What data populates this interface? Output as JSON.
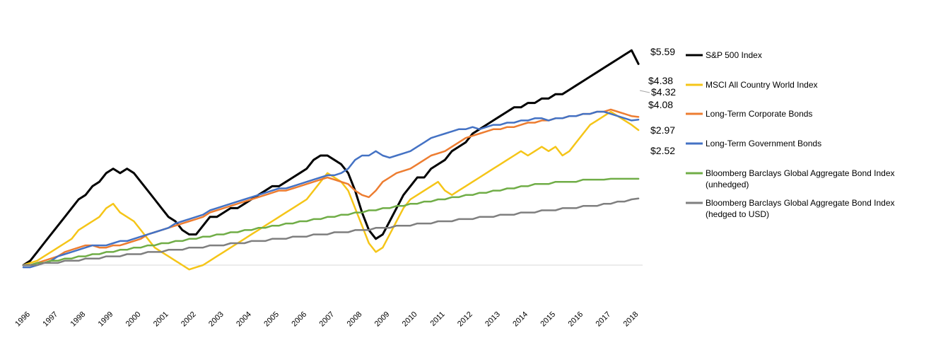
{
  "chart_data": {
    "type": "line",
    "title": "",
    "xlabel": "",
    "ylabel": "",
    "grid": false,
    "legend_position": "right",
    "x_ticks": [
      "1996",
      "1997",
      "1998",
      "1999",
      "2000",
      "2001",
      "2002",
      "2003",
      "2004",
      "2005",
      "2006",
      "2007",
      "2008",
      "2009",
      "2010",
      "2011",
      "2012",
      "2013",
      "2014",
      "2015",
      "2016",
      "2017",
      "2018"
    ],
    "x_range": [
      1996.0,
      2018.4
    ],
    "y_range": [
      0.5,
      6.1
    ],
    "series": [
      {
        "name": "S&P 500 Index",
        "color": "#000000",
        "end_label": "$5.59",
        "x": [
          1996.0,
          1996.25,
          1996.5,
          1996.75,
          1997.0,
          1997.25,
          1997.5,
          1997.75,
          1998.0,
          1998.25,
          1998.5,
          1998.75,
          1999.0,
          1999.25,
          1999.5,
          1999.75,
          2000.0,
          2000.25,
          2000.5,
          2000.75,
          2001.0,
          2001.25,
          2001.5,
          2001.75,
          2002.0,
          2002.25,
          2002.5,
          2002.75,
          2003.0,
          2003.25,
          2003.5,
          2003.75,
          2004.0,
          2004.25,
          2004.5,
          2004.75,
          2005.0,
          2005.25,
          2005.5,
          2005.75,
          2006.0,
          2006.25,
          2006.5,
          2006.75,
          2007.0,
          2007.25,
          2007.5,
          2007.75,
          2008.0,
          2008.25,
          2008.5,
          2008.75,
          2009.0,
          2009.25,
          2009.5,
          2009.75,
          2010.0,
          2010.25,
          2010.5,
          2010.75,
          2011.0,
          2011.25,
          2011.5,
          2011.75,
          2012.0,
          2012.25,
          2012.5,
          2012.75,
          2013.0,
          2013.25,
          2013.5,
          2013.75,
          2014.0,
          2014.25,
          2014.5,
          2014.75,
          2015.0,
          2015.25,
          2015.5,
          2015.75,
          2016.0,
          2016.25,
          2016.5,
          2016.75,
          2017.0,
          2017.25,
          2017.5,
          2017.75,
          2018.0,
          2018.25
        ],
        "values": [
          1.0,
          1.1,
          1.3,
          1.5,
          1.7,
          1.9,
          2.1,
          2.3,
          2.5,
          2.6,
          2.8,
          2.9,
          3.1,
          3.2,
          3.1,
          3.2,
          3.1,
          2.9,
          2.7,
          2.5,
          2.3,
          2.1,
          2.0,
          1.8,
          1.7,
          1.7,
          1.9,
          2.1,
          2.1,
          2.2,
          2.3,
          2.3,
          2.4,
          2.5,
          2.6,
          2.7,
          2.8,
          2.8,
          2.9,
          3.0,
          3.1,
          3.2,
          3.4,
          3.5,
          3.5,
          3.4,
          3.3,
          3.1,
          2.7,
          2.2,
          1.8,
          1.6,
          1.7,
          2.0,
          2.3,
          2.6,
          2.8,
          3.0,
          3.0,
          3.2,
          3.3,
          3.4,
          3.6,
          3.7,
          3.8,
          4.0,
          4.1,
          4.2,
          4.3,
          4.4,
          4.5,
          4.6,
          4.6,
          4.7,
          4.7,
          4.8,
          4.8,
          4.9,
          4.9,
          5.0,
          5.1,
          5.2,
          5.3,
          5.4,
          5.5,
          5.6,
          5.7,
          5.8,
          5.9,
          5.59
        ]
      },
      {
        "name": "MSCI All Country World Index",
        "color": "#F5C518",
        "end_label": "$4.08",
        "x": [
          1996.0,
          1996.25,
          1996.5,
          1996.75,
          1997.0,
          1997.25,
          1997.5,
          1997.75,
          1998.0,
          1998.25,
          1998.5,
          1998.75,
          1999.0,
          1999.25,
          1999.5,
          1999.75,
          2000.0,
          2000.25,
          2000.5,
          2000.75,
          2001.0,
          2001.25,
          2001.5,
          2001.75,
          2002.0,
          2002.25,
          2002.5,
          2002.75,
          2003.0,
          2003.25,
          2003.5,
          2003.75,
          2004.0,
          2004.25,
          2004.5,
          2004.75,
          2005.0,
          2005.25,
          2005.5,
          2005.75,
          2006.0,
          2006.25,
          2006.5,
          2006.75,
          2007.0,
          2007.25,
          2007.5,
          2007.75,
          2008.0,
          2008.25,
          2008.5,
          2008.75,
          2009.0,
          2009.25,
          2009.5,
          2009.75,
          2010.0,
          2010.25,
          2010.5,
          2010.75,
          2011.0,
          2011.25,
          2011.5,
          2011.75,
          2012.0,
          2012.25,
          2012.5,
          2012.75,
          2013.0,
          2013.25,
          2013.5,
          2013.75,
          2014.0,
          2014.25,
          2014.5,
          2014.75,
          2015.0,
          2015.25,
          2015.5,
          2015.75,
          2016.0,
          2016.25,
          2016.5,
          2016.75,
          2017.0,
          2017.25,
          2017.5,
          2017.75,
          2018.0,
          2018.25
        ],
        "values": [
          1.0,
          1.05,
          1.1,
          1.2,
          1.3,
          1.4,
          1.5,
          1.6,
          1.8,
          1.9,
          2.0,
          2.1,
          2.3,
          2.4,
          2.2,
          2.1,
          2.0,
          1.8,
          1.6,
          1.4,
          1.3,
          1.2,
          1.1,
          1.0,
          0.9,
          0.95,
          1.0,
          1.1,
          1.2,
          1.3,
          1.4,
          1.5,
          1.6,
          1.7,
          1.8,
          1.9,
          2.0,
          2.1,
          2.2,
          2.3,
          2.4,
          2.5,
          2.7,
          2.9,
          3.1,
          3.0,
          2.9,
          2.7,
          2.3,
          1.9,
          1.5,
          1.3,
          1.4,
          1.7,
          2.0,
          2.3,
          2.5,
          2.6,
          2.7,
          2.8,
          2.9,
          2.7,
          2.6,
          2.7,
          2.8,
          2.9,
          3.0,
          3.1,
          3.2,
          3.3,
          3.4,
          3.5,
          3.6,
          3.5,
          3.6,
          3.7,
          3.6,
          3.7,
          3.5,
          3.6,
          3.8,
          4.0,
          4.2,
          4.3,
          4.4,
          4.5,
          4.4,
          4.3,
          4.2,
          4.08
        ]
      },
      {
        "name": "Long-Term Corporate Bonds",
        "color": "#ED7D31",
        "end_label": "$4.38",
        "x": [
          1996.0,
          1996.25,
          1996.5,
          1996.75,
          1997.0,
          1997.25,
          1997.5,
          1997.75,
          1998.0,
          1998.25,
          1998.5,
          1998.75,
          1999.0,
          1999.25,
          1999.5,
          1999.75,
          2000.0,
          2000.25,
          2000.5,
          2000.75,
          2001.0,
          2001.25,
          2001.5,
          2001.75,
          2002.0,
          2002.25,
          2002.5,
          2002.75,
          2003.0,
          2003.25,
          2003.5,
          2003.75,
          2004.0,
          2004.25,
          2004.5,
          2004.75,
          2005.0,
          2005.25,
          2005.5,
          2005.75,
          2006.0,
          2006.25,
          2006.5,
          2006.75,
          2007.0,
          2007.25,
          2007.5,
          2007.75,
          2008.0,
          2008.25,
          2008.5,
          2008.75,
          2009.0,
          2009.25,
          2009.5,
          2009.75,
          2010.0,
          2010.25,
          2010.5,
          2010.75,
          2011.0,
          2011.25,
          2011.5,
          2011.75,
          2012.0,
          2012.25,
          2012.5,
          2012.75,
          2013.0,
          2013.25,
          2013.5,
          2013.75,
          2014.0,
          2014.25,
          2014.5,
          2014.75,
          2015.0,
          2015.25,
          2015.5,
          2015.75,
          2016.0,
          2016.25,
          2016.5,
          2016.75,
          2017.0,
          2017.25,
          2017.5,
          2017.75,
          2018.0,
          2018.25
        ],
        "values": [
          1.0,
          1.0,
          1.05,
          1.1,
          1.15,
          1.2,
          1.3,
          1.35,
          1.4,
          1.45,
          1.45,
          1.4,
          1.4,
          1.45,
          1.45,
          1.5,
          1.55,
          1.6,
          1.7,
          1.75,
          1.8,
          1.85,
          1.9,
          1.95,
          2.0,
          2.05,
          2.1,
          2.2,
          2.25,
          2.3,
          2.35,
          2.4,
          2.45,
          2.5,
          2.55,
          2.6,
          2.65,
          2.7,
          2.7,
          2.75,
          2.8,
          2.85,
          2.9,
          2.95,
          3.0,
          2.95,
          2.9,
          2.85,
          2.7,
          2.6,
          2.55,
          2.7,
          2.9,
          3.0,
          3.1,
          3.15,
          3.2,
          3.3,
          3.4,
          3.5,
          3.55,
          3.6,
          3.7,
          3.8,
          3.9,
          3.95,
          4.0,
          4.05,
          4.1,
          4.1,
          4.15,
          4.15,
          4.2,
          4.25,
          4.25,
          4.3,
          4.3,
          4.35,
          4.35,
          4.4,
          4.4,
          4.45,
          4.45,
          4.5,
          4.5,
          4.55,
          4.5,
          4.45,
          4.4,
          4.38
        ]
      },
      {
        "name": "Long-Term Government Bonds",
        "color": "#4472C4",
        "end_label": "$4.32",
        "x": [
          1996.0,
          1996.25,
          1996.5,
          1996.75,
          1997.0,
          1997.25,
          1997.5,
          1997.75,
          1998.0,
          1998.25,
          1998.5,
          1998.75,
          1999.0,
          1999.25,
          1999.5,
          1999.75,
          2000.0,
          2000.25,
          2000.5,
          2000.75,
          2001.0,
          2001.25,
          2001.5,
          2001.75,
          2002.0,
          2002.25,
          2002.5,
          2002.75,
          2003.0,
          2003.25,
          2003.5,
          2003.75,
          2004.0,
          2004.25,
          2004.5,
          2004.75,
          2005.0,
          2005.25,
          2005.5,
          2005.75,
          2006.0,
          2006.25,
          2006.5,
          2006.75,
          2007.0,
          2007.25,
          2007.5,
          2007.75,
          2008.0,
          2008.25,
          2008.5,
          2008.75,
          2009.0,
          2009.25,
          2009.5,
          2009.75,
          2010.0,
          2010.25,
          2010.5,
          2010.75,
          2011.0,
          2011.25,
          2011.5,
          2011.75,
          2012.0,
          2012.25,
          2012.5,
          2012.75,
          2013.0,
          2013.25,
          2013.5,
          2013.75,
          2014.0,
          2014.25,
          2014.5,
          2014.75,
          2015.0,
          2015.25,
          2015.5,
          2015.75,
          2016.0,
          2016.25,
          2016.5,
          2016.75,
          2017.0,
          2017.25,
          2017.5,
          2017.75,
          2018.0,
          2018.25
        ],
        "values": [
          0.95,
          0.95,
          1.0,
          1.05,
          1.1,
          1.2,
          1.25,
          1.3,
          1.35,
          1.4,
          1.45,
          1.45,
          1.45,
          1.5,
          1.55,
          1.55,
          1.6,
          1.65,
          1.7,
          1.75,
          1.8,
          1.85,
          1.95,
          2.0,
          2.05,
          2.1,
          2.15,
          2.25,
          2.3,
          2.35,
          2.4,
          2.45,
          2.5,
          2.55,
          2.6,
          2.65,
          2.7,
          2.75,
          2.75,
          2.8,
          2.85,
          2.9,
          2.95,
          3.0,
          3.05,
          3.05,
          3.1,
          3.2,
          3.4,
          3.5,
          3.5,
          3.6,
          3.5,
          3.45,
          3.5,
          3.55,
          3.6,
          3.7,
          3.8,
          3.9,
          3.95,
          4.0,
          4.05,
          4.1,
          4.1,
          4.15,
          4.1,
          4.15,
          4.2,
          4.2,
          4.25,
          4.25,
          4.3,
          4.3,
          4.35,
          4.35,
          4.3,
          4.35,
          4.35,
          4.4,
          4.4,
          4.45,
          4.45,
          4.5,
          4.5,
          4.45,
          4.4,
          4.35,
          4.3,
          4.32
        ]
      },
      {
        "name": "Bloomberg Barclays Global Aggregate Bond Index (unhedged)",
        "color": "#70AD47",
        "end_label": "$2.97",
        "x": [
          1996.0,
          1996.25,
          1996.5,
          1996.75,
          1997.0,
          1997.25,
          1997.5,
          1997.75,
          1998.0,
          1998.25,
          1998.5,
          1998.75,
          1999.0,
          1999.25,
          1999.5,
          1999.75,
          2000.0,
          2000.25,
          2000.5,
          2000.75,
          2001.0,
          2001.25,
          2001.5,
          2001.75,
          2002.0,
          2002.25,
          2002.5,
          2002.75,
          2003.0,
          2003.25,
          2003.5,
          2003.75,
          2004.0,
          2004.25,
          2004.5,
          2004.75,
          2005.0,
          2005.25,
          2005.5,
          2005.75,
          2006.0,
          2006.25,
          2006.5,
          2006.75,
          2007.0,
          2007.25,
          2007.5,
          2007.75,
          2008.0,
          2008.25,
          2008.5,
          2008.75,
          2009.0,
          2009.25,
          2009.5,
          2009.75,
          2010.0,
          2010.25,
          2010.5,
          2010.75,
          2011.0,
          2011.25,
          2011.5,
          2011.75,
          2012.0,
          2012.25,
          2012.5,
          2012.75,
          2013.0,
          2013.25,
          2013.5,
          2013.75,
          2014.0,
          2014.25,
          2014.5,
          2014.75,
          2015.0,
          2015.25,
          2015.5,
          2015.75,
          2016.0,
          2016.25,
          2016.5,
          2016.75,
          2017.0,
          2017.25,
          2017.5,
          2017.75,
          2018.0,
          2018.25
        ],
        "values": [
          1.0,
          1.0,
          1.05,
          1.05,
          1.1,
          1.1,
          1.15,
          1.15,
          1.2,
          1.2,
          1.25,
          1.25,
          1.3,
          1.3,
          1.35,
          1.35,
          1.4,
          1.4,
          1.45,
          1.45,
          1.5,
          1.5,
          1.55,
          1.55,
          1.6,
          1.6,
          1.65,
          1.65,
          1.7,
          1.7,
          1.75,
          1.75,
          1.8,
          1.8,
          1.85,
          1.85,
          1.9,
          1.9,
          1.95,
          1.95,
          2.0,
          2.0,
          2.05,
          2.05,
          2.1,
          2.1,
          2.15,
          2.15,
          2.2,
          2.2,
          2.25,
          2.25,
          2.3,
          2.3,
          2.35,
          2.35,
          2.4,
          2.4,
          2.45,
          2.45,
          2.5,
          2.5,
          2.55,
          2.55,
          2.6,
          2.6,
          2.65,
          2.65,
          2.7,
          2.7,
          2.75,
          2.75,
          2.8,
          2.8,
          2.85,
          2.85,
          2.85,
          2.9,
          2.9,
          2.9,
          2.9,
          2.95,
          2.95,
          2.95,
          2.95,
          2.97,
          2.97,
          2.97,
          2.97,
          2.97
        ]
      },
      {
        "name": "Bloomberg Barclays Global Aggregate Bond Index (hedged to USD)",
        "color": "#7F7F7F",
        "end_label": "$2.52",
        "x": [
          1996.0,
          1996.25,
          1996.5,
          1996.75,
          1997.0,
          1997.25,
          1997.5,
          1997.75,
          1998.0,
          1998.25,
          1998.5,
          1998.75,
          1999.0,
          1999.25,
          1999.5,
          1999.75,
          2000.0,
          2000.25,
          2000.5,
          2000.75,
          2001.0,
          2001.25,
          2001.5,
          2001.75,
          2002.0,
          2002.25,
          2002.5,
          2002.75,
          2003.0,
          2003.25,
          2003.5,
          2003.75,
          2004.0,
          2004.25,
          2004.5,
          2004.75,
          2005.0,
          2005.25,
          2005.5,
          2005.75,
          2006.0,
          2006.25,
          2006.5,
          2006.75,
          2007.0,
          2007.25,
          2007.5,
          2007.75,
          2008.0,
          2008.25,
          2008.5,
          2008.75,
          2009.0,
          2009.25,
          2009.5,
          2009.75,
          2010.0,
          2010.25,
          2010.5,
          2010.75,
          2011.0,
          2011.25,
          2011.5,
          2011.75,
          2012.0,
          2012.25,
          2012.5,
          2012.75,
          2013.0,
          2013.25,
          2013.5,
          2013.75,
          2014.0,
          2014.25,
          2014.5,
          2014.75,
          2015.0,
          2015.25,
          2015.5,
          2015.75,
          2016.0,
          2016.25,
          2016.5,
          2016.75,
          2017.0,
          2017.25,
          2017.5,
          2017.75,
          2018.0,
          2018.25
        ],
        "values": [
          1.0,
          1.0,
          1.0,
          1.05,
          1.05,
          1.05,
          1.1,
          1.1,
          1.1,
          1.15,
          1.15,
          1.15,
          1.2,
          1.2,
          1.2,
          1.25,
          1.25,
          1.25,
          1.3,
          1.3,
          1.3,
          1.35,
          1.35,
          1.35,
          1.4,
          1.4,
          1.4,
          1.45,
          1.45,
          1.45,
          1.5,
          1.5,
          1.5,
          1.55,
          1.55,
          1.55,
          1.6,
          1.6,
          1.6,
          1.65,
          1.65,
          1.65,
          1.7,
          1.7,
          1.7,
          1.75,
          1.75,
          1.75,
          1.8,
          1.8,
          1.8,
          1.85,
          1.85,
          1.85,
          1.9,
          1.9,
          1.9,
          1.95,
          1.95,
          1.95,
          2.0,
          2.0,
          2.0,
          2.05,
          2.05,
          2.05,
          2.1,
          2.1,
          2.1,
          2.15,
          2.15,
          2.15,
          2.2,
          2.2,
          2.2,
          2.25,
          2.25,
          2.25,
          2.3,
          2.3,
          2.3,
          2.35,
          2.35,
          2.35,
          2.4,
          2.4,
          2.45,
          2.45,
          2.5,
          2.52
        ]
      }
    ]
  }
}
